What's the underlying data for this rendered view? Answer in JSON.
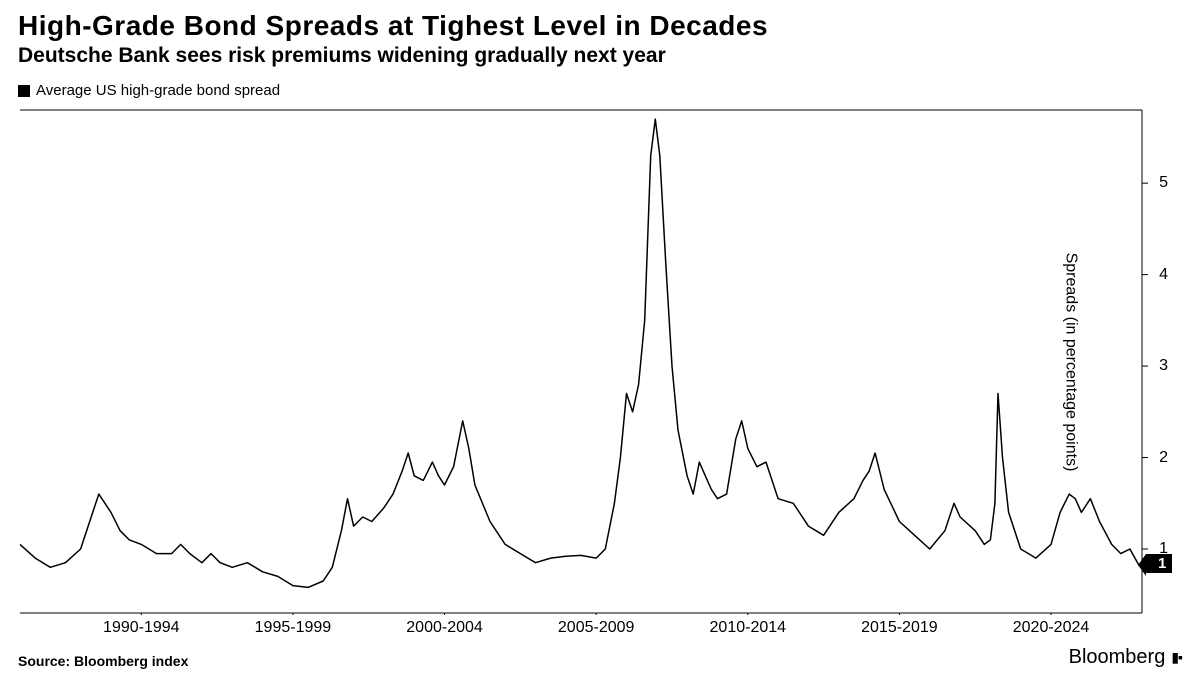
{
  "header": {
    "title": "High-Grade Bond Spreads at Tighest Level in Decades",
    "subtitle": "Deutsche Bank sees risk premiums widening gradually next year"
  },
  "legend": {
    "label": "Average US high-grade bond spread",
    "swatch_color": "#000000"
  },
  "chart": {
    "type": "line",
    "line_color": "#000000",
    "line_width": 1.5,
    "background_color": "#ffffff",
    "border_color": "#000000",
    "x_range": [
      1988,
      2025
    ],
    "y_range": [
      0.3,
      5.8
    ],
    "y_ticks": [
      1,
      2,
      3,
      4,
      5
    ],
    "y_axis_title": "Spreads (in percentage points)",
    "x_tick_labels": [
      {
        "pos": 1992,
        "label": "1990-1994"
      },
      {
        "pos": 1997,
        "label": "1995-1999"
      },
      {
        "pos": 2002,
        "label": "2000-2004"
      },
      {
        "pos": 2007,
        "label": "2005-2009"
      },
      {
        "pos": 2012,
        "label": "2010-2014"
      },
      {
        "pos": 2017,
        "label": "2015-2019"
      },
      {
        "pos": 2022,
        "label": "2020-2024"
      }
    ],
    "end_flag_value": "1",
    "series": [
      [
        1988.0,
        1.05
      ],
      [
        1988.5,
        0.9
      ],
      [
        1989.0,
        0.8
      ],
      [
        1989.5,
        0.85
      ],
      [
        1990.0,
        1.0
      ],
      [
        1990.3,
        1.3
      ],
      [
        1990.6,
        1.6
      ],
      [
        1991.0,
        1.4
      ],
      [
        1991.3,
        1.2
      ],
      [
        1991.6,
        1.1
      ],
      [
        1992.0,
        1.05
      ],
      [
        1992.5,
        0.95
      ],
      [
        1993.0,
        0.95
      ],
      [
        1993.3,
        1.05
      ],
      [
        1993.6,
        0.95
      ],
      [
        1994.0,
        0.85
      ],
      [
        1994.3,
        0.95
      ],
      [
        1994.6,
        0.85
      ],
      [
        1995.0,
        0.8
      ],
      [
        1995.5,
        0.85
      ],
      [
        1996.0,
        0.75
      ],
      [
        1996.5,
        0.7
      ],
      [
        1997.0,
        0.6
      ],
      [
        1997.5,
        0.58
      ],
      [
        1998.0,
        0.65
      ],
      [
        1998.3,
        0.8
      ],
      [
        1998.6,
        1.2
      ],
      [
        1998.8,
        1.55
      ],
      [
        1999.0,
        1.25
      ],
      [
        1999.3,
        1.35
      ],
      [
        1999.6,
        1.3
      ],
      [
        2000.0,
        1.45
      ],
      [
        2000.3,
        1.6
      ],
      [
        2000.6,
        1.85
      ],
      [
        2000.8,
        2.05
      ],
      [
        2001.0,
        1.8
      ],
      [
        2001.3,
        1.75
      ],
      [
        2001.6,
        1.95
      ],
      [
        2001.8,
        1.8
      ],
      [
        2002.0,
        1.7
      ],
      [
        2002.3,
        1.9
      ],
      [
        2002.6,
        2.4
      ],
      [
        2002.8,
        2.1
      ],
      [
        2003.0,
        1.7
      ],
      [
        2003.5,
        1.3
      ],
      [
        2004.0,
        1.05
      ],
      [
        2004.5,
        0.95
      ],
      [
        2005.0,
        0.85
      ],
      [
        2005.5,
        0.9
      ],
      [
        2006.0,
        0.92
      ],
      [
        2006.5,
        0.93
      ],
      [
        2007.0,
        0.9
      ],
      [
        2007.3,
        1.0
      ],
      [
        2007.6,
        1.5
      ],
      [
        2007.8,
        2.0
      ],
      [
        2008.0,
        2.7
      ],
      [
        2008.2,
        2.5
      ],
      [
        2008.4,
        2.8
      ],
      [
        2008.6,
        3.5
      ],
      [
        2008.8,
        5.3
      ],
      [
        2008.95,
        5.7
      ],
      [
        2009.1,
        5.3
      ],
      [
        2009.3,
        4.1
      ],
      [
        2009.5,
        3.0
      ],
      [
        2009.7,
        2.3
      ],
      [
        2010.0,
        1.8
      ],
      [
        2010.2,
        1.6
      ],
      [
        2010.4,
        1.95
      ],
      [
        2010.6,
        1.8
      ],
      [
        2010.8,
        1.65
      ],
      [
        2011.0,
        1.55
      ],
      [
        2011.3,
        1.6
      ],
      [
        2011.6,
        2.2
      ],
      [
        2011.8,
        2.4
      ],
      [
        2012.0,
        2.1
      ],
      [
        2012.3,
        1.9
      ],
      [
        2012.6,
        1.95
      ],
      [
        2013.0,
        1.55
      ],
      [
        2013.5,
        1.5
      ],
      [
        2014.0,
        1.25
      ],
      [
        2014.5,
        1.15
      ],
      [
        2015.0,
        1.4
      ],
      [
        2015.5,
        1.55
      ],
      [
        2015.8,
        1.75
      ],
      [
        2016.0,
        1.85
      ],
      [
        2016.2,
        2.05
      ],
      [
        2016.5,
        1.65
      ],
      [
        2017.0,
        1.3
      ],
      [
        2017.5,
        1.15
      ],
      [
        2018.0,
        1.0
      ],
      [
        2018.5,
        1.2
      ],
      [
        2018.8,
        1.5
      ],
      [
        2019.0,
        1.35
      ],
      [
        2019.5,
        1.2
      ],
      [
        2019.8,
        1.05
      ],
      [
        2020.0,
        1.1
      ],
      [
        2020.15,
        1.5
      ],
      [
        2020.25,
        2.7
      ],
      [
        2020.4,
        2.0
      ],
      [
        2020.6,
        1.4
      ],
      [
        2021.0,
        1.0
      ],
      [
        2021.5,
        0.9
      ],
      [
        2022.0,
        1.05
      ],
      [
        2022.3,
        1.4
      ],
      [
        2022.6,
        1.6
      ],
      [
        2022.8,
        1.55
      ],
      [
        2023.0,
        1.4
      ],
      [
        2023.3,
        1.55
      ],
      [
        2023.6,
        1.3
      ],
      [
        2024.0,
        1.05
      ],
      [
        2024.3,
        0.95
      ],
      [
        2024.6,
        1.0
      ],
      [
        2024.9,
        0.82
      ]
    ]
  },
  "footer": {
    "source": "Source: Bloomberg index",
    "brand": "Bloomberg"
  },
  "style": {
    "title_fontsize": 28,
    "subtitle_fontsize": 21,
    "axis_label_fontsize": 16,
    "tick_fontsize": 16,
    "source_fontsize": 14
  }
}
